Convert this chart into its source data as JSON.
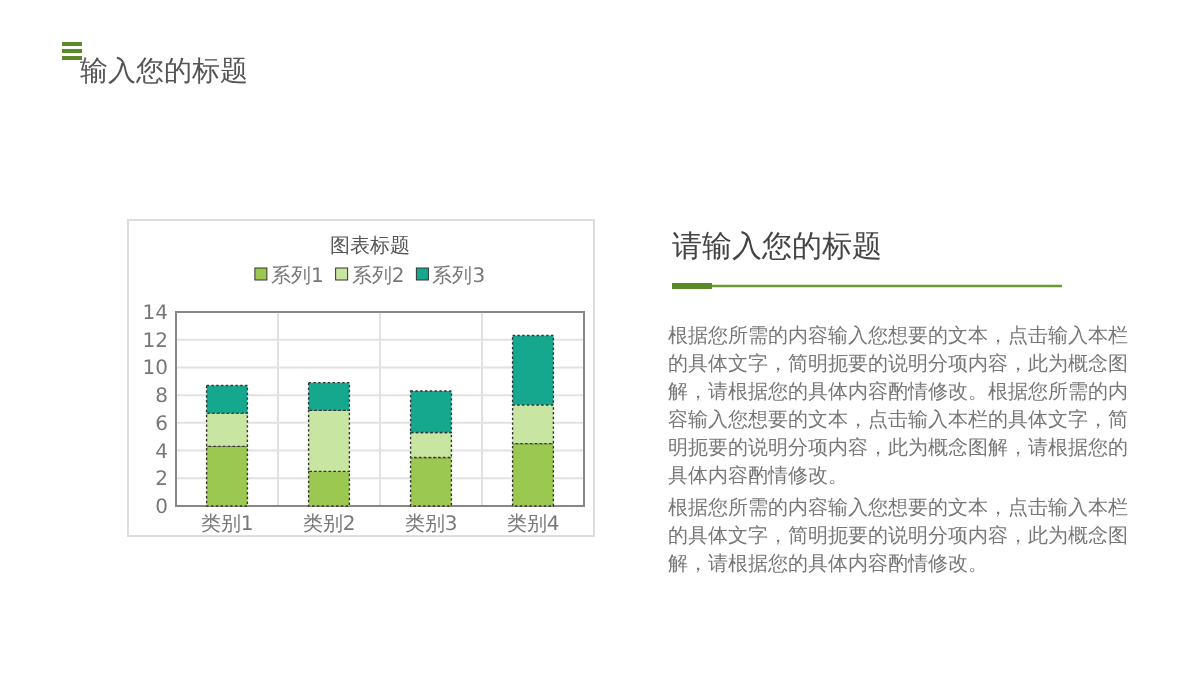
{
  "chart_data": {
    "type": "bar",
    "stacked": true,
    "title": "图表标题",
    "categories": [
      "类别1",
      "类别2",
      "类别3",
      "类别4"
    ],
    "series": [
      {
        "name": "系列1",
        "color": "#9bc850",
        "values": [
          4.3,
          2.5,
          3.5,
          4.5
        ]
      },
      {
        "name": "系列2",
        "color": "#c8e6a2",
        "values": [
          2.4,
          4.4,
          1.8,
          2.8
        ]
      },
      {
        "name": "系列3",
        "color": "#16a88e",
        "values": [
          2,
          2,
          3,
          5
        ]
      }
    ],
    "ylim": [
      0,
      14
    ],
    "yticks": [
      0,
      2,
      4,
      6,
      8,
      10,
      12,
      14
    ],
    "grid": true,
    "legend": "top",
    "annotations": [
      "输入您的标题",
      "请输入您的标题",
      "根据您所需的内容输入您想要的文本，点击输入本栏的具体文字，简明扼要的说明分项内容，此为概念图解，请根据您的具体内容酌情修改。根据您所需的内容输入您想要的文本，点击输入本栏的具体文字，简明扼要的说明分项内容，此为概念图解，请根据您的具体内容酌情修改。",
      "根据您所需的内容输入您想要的文本，点击输入本栏的具体文字，简明扼要的说明分项内容，此为概念图解，请根据您的具体内容酌情修改。"
    ]
  }
}
